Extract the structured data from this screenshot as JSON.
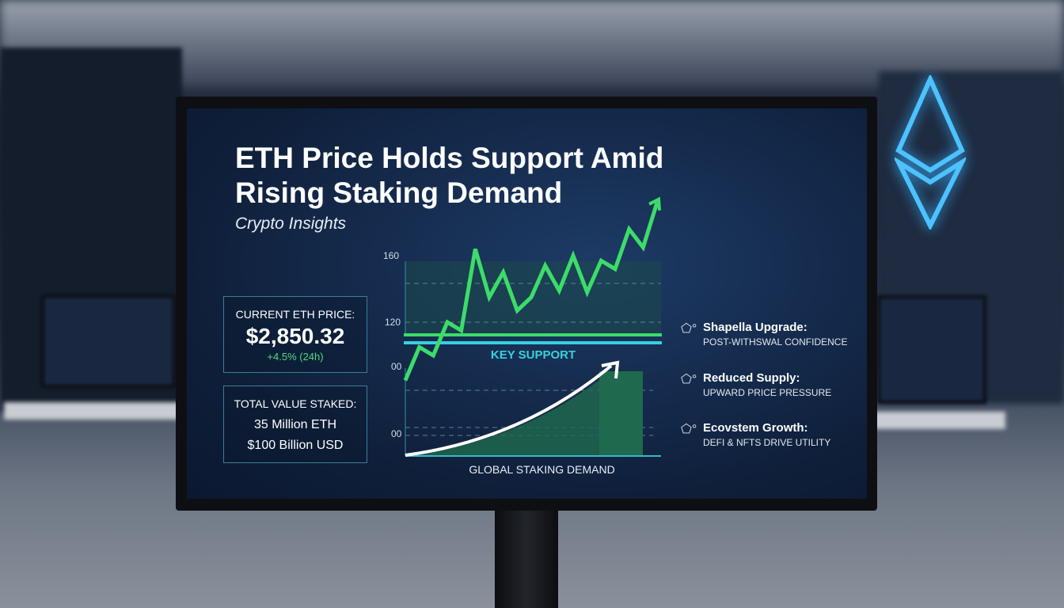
{
  "headline": "ETH Price Holds Support Amid Rising Staking Demand",
  "subtitle": "Crypto Insights",
  "price_box": {
    "label": "CURRENT ETH PRICE:",
    "price": "$2,850.32",
    "change": "+4.5% (24h)"
  },
  "staked_box": {
    "label": "TOTAL VALUE STAKED:",
    "eth": "35 Million ETH",
    "usd": "$100 Billion USD"
  },
  "chart": {
    "y_ticks": [
      "160",
      "120",
      "00",
      "00"
    ],
    "support_label": "KEY SUPPORT",
    "demand_label": "GLOBAL STAKING DEMAND",
    "price_line": [
      85,
      105,
      100,
      120,
      115,
      164,
      135,
      150,
      127,
      135,
      154,
      139,
      160,
      138,
      157,
      152,
      176,
      165,
      192
    ],
    "colors": {
      "price": "#3ddc6a",
      "support": "#37d0e0",
      "support_price": "#3ddc6a",
      "demand_curve": "#ffffff",
      "fill": "#1f6a4e"
    }
  },
  "features": [
    {
      "icon": "pentagon-circle-icon",
      "title": "Shapella Upgrade:",
      "sub": "POST-WITHSWAL CONFIDENCE"
    },
    {
      "icon": "pentagon-circle-icon",
      "title": "Reduced Supply:",
      "sub": "UPWARD PRICE PRESSURE"
    },
    {
      "icon": "pentagon-circle-icon",
      "title": "Ecovstem Growth:",
      "sub": "DEFI & NFTS DRIVE UTILITY"
    }
  ]
}
